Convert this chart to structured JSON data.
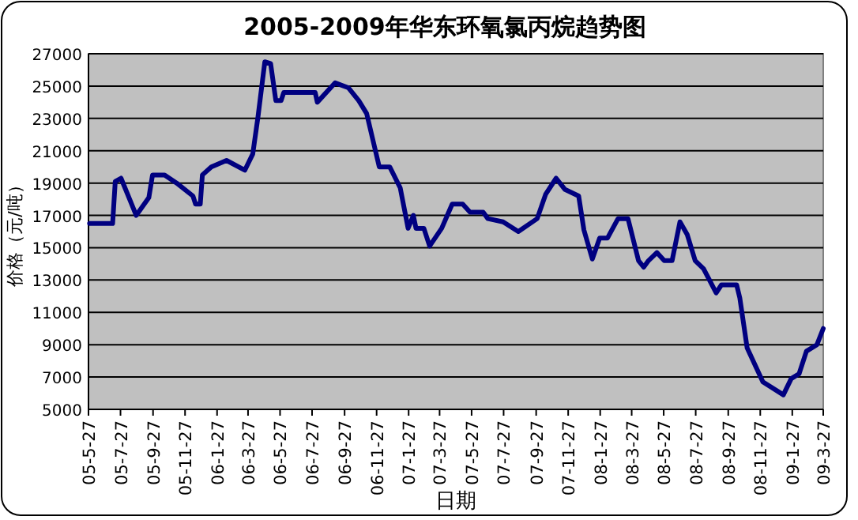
{
  "chart_data": {
    "type": "line",
    "title": "2005-2009年华东环氧氯丙烷趋势图",
    "xlabel": "日期",
    "ylabel": "价格（元/吨）",
    "xlim": [
      "2005-05-27",
      "2009-03-27"
    ],
    "xticks": [
      {
        "value": "2005-05-27",
        "label": "05-5-27"
      },
      {
        "value": "2005-07-27",
        "label": "05-7-27"
      },
      {
        "value": "2005-09-27",
        "label": "05-9-27"
      },
      {
        "value": "2005-11-27",
        "label": "05-11-27"
      },
      {
        "value": "2006-01-27",
        "label": "06-1-27"
      },
      {
        "value": "2006-03-27",
        "label": "06-3-27"
      },
      {
        "value": "2006-05-27",
        "label": "06-5-27"
      },
      {
        "value": "2006-07-27",
        "label": "06-7-27"
      },
      {
        "value": "2006-09-27",
        "label": "06-9-27"
      },
      {
        "value": "2006-11-27",
        "label": "06-11-27"
      },
      {
        "value": "2007-01-27",
        "label": "07-1-27"
      },
      {
        "value": "2007-03-27",
        "label": "07-3-27"
      },
      {
        "value": "2007-05-27",
        "label": "07-5-27"
      },
      {
        "value": "2007-07-27",
        "label": "07-7-27"
      },
      {
        "value": "2007-09-27",
        "label": "07-9-27"
      },
      {
        "value": "2007-11-27",
        "label": "07-11-27"
      },
      {
        "value": "2008-01-27",
        "label": "08-1-27"
      },
      {
        "value": "2008-03-27",
        "label": "08-3-27"
      },
      {
        "value": "2008-05-27",
        "label": "08-5-27"
      },
      {
        "value": "2008-07-27",
        "label": "08-7-27"
      },
      {
        "value": "2008-09-27",
        "label": "08-9-27"
      },
      {
        "value": "2008-11-27",
        "label": "08-11-27"
      },
      {
        "value": "2009-01-27",
        "label": "09-1-27"
      },
      {
        "value": "2009-03-27",
        "label": "09-3-27"
      }
    ],
    "ylim": [
      5000,
      27000
    ],
    "yticks": [
      5000,
      7000,
      9000,
      11000,
      13000,
      15000,
      17000,
      19000,
      21000,
      23000,
      25000,
      27000
    ],
    "grid": "y",
    "marker": "none",
    "line_style": "solid",
    "series": [
      {
        "color": "#000080",
        "x": [
          "2005-05-29",
          "2005-07-12",
          "2005-07-17",
          "2005-07-28",
          "2005-08-26",
          "2005-09-19",
          "2005-09-26",
          "2005-10-19",
          "2005-11-11",
          "2005-12-12",
          "2005-12-17",
          "2005-12-26",
          "2005-12-30",
          "2006-01-16",
          "2006-02-14",
          "2006-03-21",
          "2006-04-05",
          "2006-04-15",
          "2006-04-28",
          "2006-05-09",
          "2006-05-19",
          "2006-05-29",
          "2006-06-03",
          "2006-08-02",
          "2006-08-06",
          "2006-09-09",
          "2006-10-04",
          "2006-10-24",
          "2006-11-08",
          "2006-12-02",
          "2006-12-22",
          "2007-01-11",
          "2007-01-26",
          "2007-02-05",
          "2007-02-10",
          "2007-02-25",
          "2007-03-08",
          "2007-03-31",
          "2007-04-20",
          "2007-05-10",
          "2007-05-24",
          "2007-06-18",
          "2007-06-27",
          "2007-07-26",
          "2007-08-24",
          "2007-09-29",
          "2007-10-15",
          "2007-11-04",
          "2007-11-21",
          "2007-12-17",
          "2007-12-27",
          "2008-01-12",
          "2008-01-26",
          "2008-02-10",
          "2008-03-01",
          "2008-03-20",
          "2008-04-09",
          "2008-04-19",
          "2008-04-28",
          "2008-05-14",
          "2008-05-28",
          "2008-06-12",
          "2008-06-27",
          "2008-07-11",
          "2008-07-26",
          "2008-08-11",
          "2008-09-04",
          "2008-09-14",
          "2008-10-13",
          "2008-10-19",
          "2008-11-02",
          "2008-12-02",
          "2009-01-10",
          "2009-01-25",
          "2009-02-09",
          "2009-02-23",
          "2009-03-15",
          "2009-03-27"
        ],
        "values": [
          16500,
          16500,
          19100,
          19300,
          17000,
          18100,
          19500,
          19500,
          19000,
          18200,
          17700,
          17700,
          19500,
          20000,
          20400,
          19800,
          20800,
          23100,
          26500,
          26400,
          24100,
          24100,
          24600,
          24600,
          24000,
          25200,
          24900,
          24100,
          23300,
          20000,
          20000,
          18700,
          16200,
          17000,
          16200,
          16200,
          15100,
          16200,
          17700,
          17700,
          17200,
          17200,
          16800,
          16600,
          16000,
          16800,
          18300,
          19300,
          18600,
          18200,
          16100,
          14300,
          15600,
          15600,
          16800,
          16800,
          14200,
          13800,
          14200,
          14700,
          14200,
          14200,
          16600,
          15800,
          14200,
          13700,
          12200,
          12700,
          12700,
          11900,
          8800,
          6700,
          5900,
          6900,
          7200,
          8600,
          9000,
          10000
        ]
      }
    ]
  }
}
